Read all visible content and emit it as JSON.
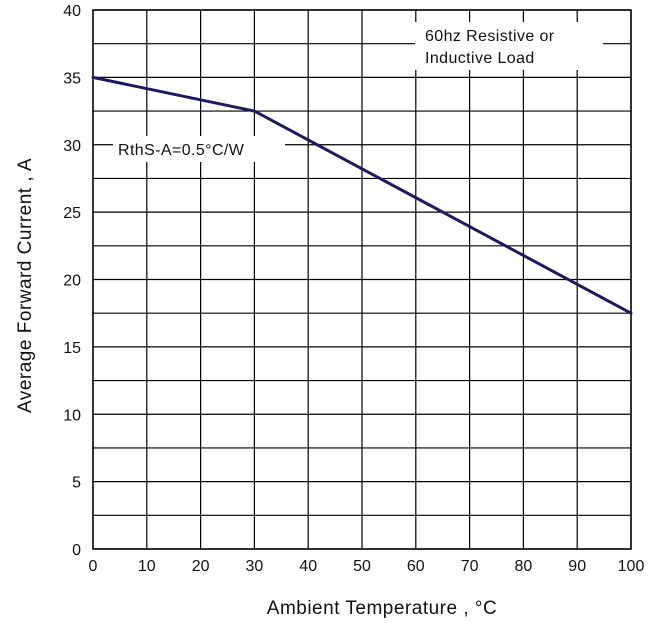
{
  "chart_data": {
    "type": "line",
    "title": "",
    "xlabel": "Ambient Temperature , °C",
    "ylabel": "Average Forward Current , A",
    "xlim": [
      0,
      100
    ],
    "ylim": [
      0,
      40
    ],
    "xticks": [
      0,
      10,
      20,
      30,
      40,
      50,
      60,
      70,
      80,
      90,
      100
    ],
    "yticks": [
      0,
      5,
      10,
      15,
      20,
      25,
      30,
      35,
      40
    ],
    "x_tick_labels": [
      "0",
      "10",
      "20",
      "30",
      "40",
      "50",
      "60",
      "70",
      "80",
      "90",
      "100"
    ],
    "y_tick_labels": [
      "0",
      "5",
      "10",
      "15",
      "20",
      "25",
      "30",
      "35",
      "40"
    ],
    "grid": true,
    "series": [
      {
        "x": [
          0,
          30,
          100
        ],
        "y": [
          35,
          32.5,
          17.5
        ],
        "color": "#1f1a5e"
      }
    ],
    "annotations": [
      {
        "line1": "60hz Resistive or",
        "line2": "Inductive Load"
      },
      {
        "line1": "RthS-A=0.5°C/W"
      }
    ]
  }
}
